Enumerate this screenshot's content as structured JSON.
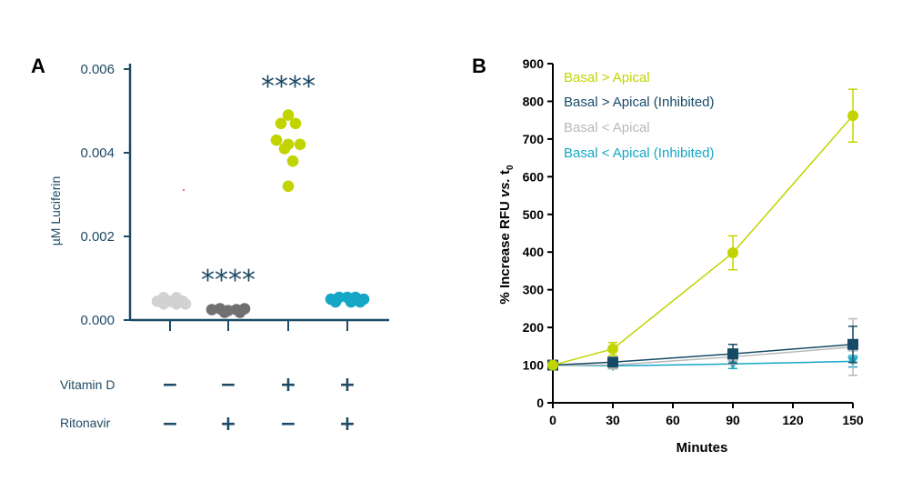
{
  "colors": {
    "axis_a": "#1d4a66",
    "axis_b": "#000000",
    "gray_light": "#d2d2d2",
    "gray_dark": "#707070",
    "yellow_green": "#c2d400",
    "navy": "#174a66",
    "light_gray_series": "#b9b9b9",
    "cyan": "#14a7c6",
    "red_dot": "#e07a7a"
  },
  "chart_data": [
    {
      "panel_label": "A",
      "type": "scatter",
      "title": "",
      "ylabel": "µM Luciferin",
      "ylim": [
        0,
        0.0062
      ],
      "yticks": [
        {
          "value": 0.0,
          "label": "0.000"
        },
        {
          "value": 0.002,
          "label": "0.002"
        },
        {
          "value": 0.004,
          "label": "0.004"
        },
        {
          "value": 0.006,
          "label": "0.006"
        }
      ],
      "conditions": [
        {
          "name": "Vitamin D",
          "values": [
            "−",
            "−",
            "+",
            "+"
          ]
        },
        {
          "name": "Ritonavir",
          "values": [
            "−",
            "+",
            "−",
            "+"
          ]
        }
      ],
      "groups": [
        {
          "points": [
            0.00045,
            0.00045,
            0.00045,
            0.00045,
            0.00045,
            0.00045,
            0.00045,
            0.00045
          ],
          "color": "#d2d2d2",
          "annotation": ""
        },
        {
          "points": [
            0.00025,
            0.00025,
            0.00025,
            0.00025,
            0.00025,
            0.00025,
            0.00025
          ],
          "color": "#707070",
          "annotation": "****"
        },
        {
          "points": [
            0.0049,
            0.0047,
            0.0047,
            0.0043,
            0.0042,
            0.0042,
            0.0041,
            0.0038,
            0.0032
          ],
          "color": "#c2d400",
          "annotation": "****"
        },
        {
          "points": [
            0.0005,
            0.0005,
            0.0005,
            0.0005,
            0.0005,
            0.0005,
            0.0005,
            0.0005
          ],
          "color": "#14a7c6",
          "annotation": ""
        }
      ]
    },
    {
      "panel_label": "B",
      "type": "line",
      "title": "",
      "xlabel": "Minutes",
      "ylabel_main": "% Increase RFU ",
      "ylabel_italic": "vs.",
      "ylabel_tail": " t",
      "ylabel_sub": "0",
      "xlim": [
        0,
        150
      ],
      "ylim": [
        0,
        900
      ],
      "xticks": [
        0,
        30,
        60,
        90,
        120,
        150
      ],
      "yticks": [
        0,
        100,
        200,
        300,
        400,
        500,
        600,
        700,
        800,
        900
      ],
      "legend_position": "top-left",
      "series": [
        {
          "name": "Basal > Apical",
          "color": "#c2d400",
          "marker": "circle",
          "x": [
            0,
            30,
            90,
            150
          ],
          "y": [
            100,
            143,
            398,
            762
          ],
          "err": [
            0,
            17,
            45,
            70
          ]
        },
        {
          "name": "Basal > Apical (Inhibited)",
          "color": "#174a66",
          "marker": "square",
          "x": [
            0,
            30,
            90,
            150
          ],
          "y": [
            100,
            108,
            130,
            155
          ],
          "err": [
            0,
            10,
            25,
            48
          ]
        },
        {
          "name": "Basal < Apical",
          "color": "#b9b9b9",
          "marker": "triangle-up",
          "x": [
            0,
            30,
            90,
            150
          ],
          "y": [
            100,
            100,
            122,
            148
          ],
          "err": [
            0,
            8,
            20,
            75
          ]
        },
        {
          "name": "Basal < Apical (Inhibited)",
          "color": "#14a7c6",
          "marker": "triangle-down",
          "x": [
            0,
            30,
            90,
            150
          ],
          "y": [
            100,
            98,
            103,
            110
          ],
          "err": [
            0,
            5,
            12,
            15
          ]
        }
      ]
    }
  ]
}
